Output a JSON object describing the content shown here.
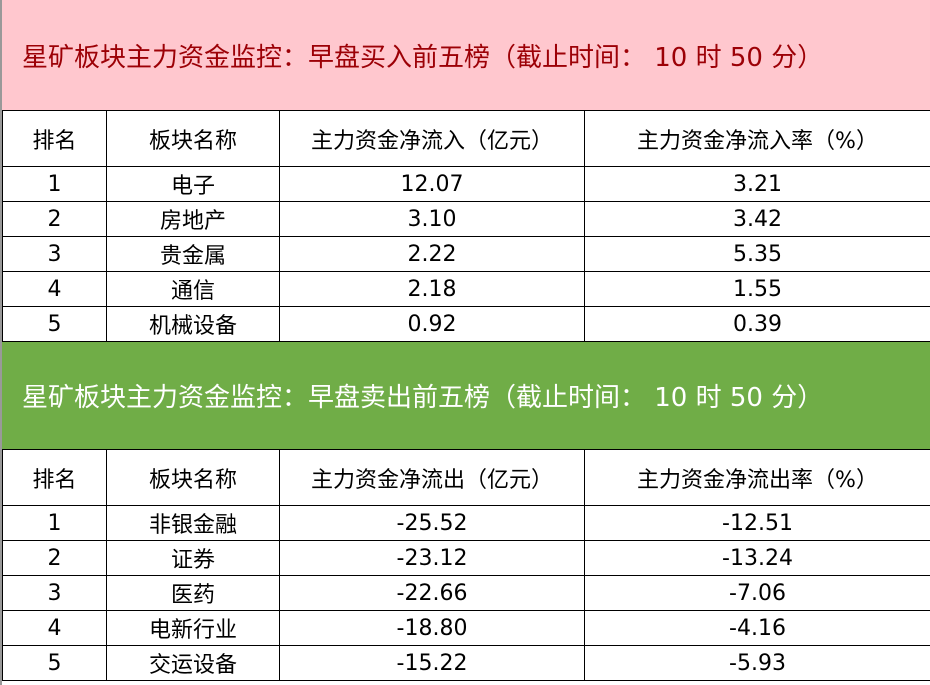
{
  "buy": {
    "title": "星矿板块主力资金监控：早盘买入前五榜（截止时间： 10 时 50 分）",
    "headers": [
      "排名",
      "板块名称",
      "主力资金净流入（亿元）",
      "主力资金净流入率（%）"
    ],
    "rows": [
      [
        "1",
        "电子",
        "12.07",
        "3.21"
      ],
      [
        "2",
        "房地产",
        "3.10",
        "3.42"
      ],
      [
        "3",
        "贵金属",
        "2.22",
        "5.35"
      ],
      [
        "4",
        "通信",
        "2.18",
        "1.55"
      ],
      [
        "5",
        "机械设备",
        "0.92",
        "0.39"
      ]
    ]
  },
  "sell": {
    "title": "星矿板块主力资金监控：早盘卖出前五榜（截止时间： 10 时 50 分）",
    "headers": [
      "排名",
      "板块名称",
      "主力资金净流出（亿元）",
      "主力资金净流出率（%）"
    ],
    "rows": [
      [
        "1",
        "非银金融",
        "-25.52",
        "-12.51"
      ],
      [
        "2",
        "证券",
        "-23.12",
        "-13.24"
      ],
      [
        "3",
        "医药",
        "-22.66",
        "-7.06"
      ],
      [
        "4",
        "电新行业",
        "-18.80",
        "-4.16"
      ],
      [
        "5",
        "交运设备",
        "-15.22",
        "-5.93"
      ]
    ]
  },
  "colors": {
    "buy_band": "#ffc7ce",
    "buy_text": "#9c0006",
    "sell_band": "#70ad47",
    "sell_text": "#ffffff"
  }
}
